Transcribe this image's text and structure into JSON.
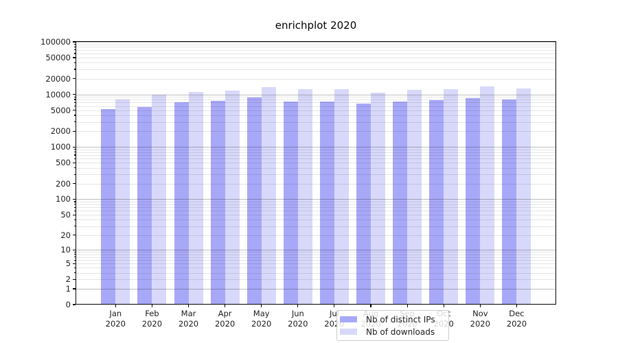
{
  "chart_data": {
    "type": "bar",
    "title": "enrichplot 2020",
    "categories": [
      "Jan\n2020",
      "Feb\n2020",
      "Mar\n2020",
      "Apr\n2020",
      "May\n2020",
      "Jun\n2020",
      "Jul\n2020",
      "Aug\n2020",
      "Sep\n2020",
      "Oct\n2020",
      "Nov\n2020",
      "Dec\n2020"
    ],
    "series": [
      {
        "name": "Nb of distinct IPs",
        "color": "#a8a8f8",
        "values": [
          5300,
          5800,
          7200,
          7500,
          8800,
          7400,
          7300,
          6700,
          7400,
          7800,
          8500,
          8000
        ]
      },
      {
        "name": "Nb of downloads",
        "color": "#d8d8fa",
        "values": [
          8000,
          10000,
          11100,
          11900,
          13900,
          12400,
          12400,
          10900,
          12100,
          12600,
          14300,
          12800
        ]
      }
    ],
    "y_axis": {
      "scale": "log1p",
      "max": 100000,
      "tick_values": [
        0,
        1,
        2,
        5,
        10,
        20,
        50,
        100,
        200,
        500,
        1000,
        2000,
        5000,
        10000,
        20000,
        50000,
        100000
      ],
      "tick_labels": [
        "0",
        "1",
        "2",
        "5",
        "10",
        "20",
        "50",
        "100",
        "200",
        "500",
        "1000",
        "2000",
        "5000",
        "10000",
        "20000",
        "50000",
        "100000"
      ]
    },
    "legend_position": "lower center",
    "grid": true
  },
  "colors": {
    "background": "#ffffff",
    "axis": "#000000",
    "text": "#1a1a1a",
    "grid_major": "#bdbdbd",
    "grid_minor": "#e6e6e6",
    "legend_border": "#cccccc"
  }
}
